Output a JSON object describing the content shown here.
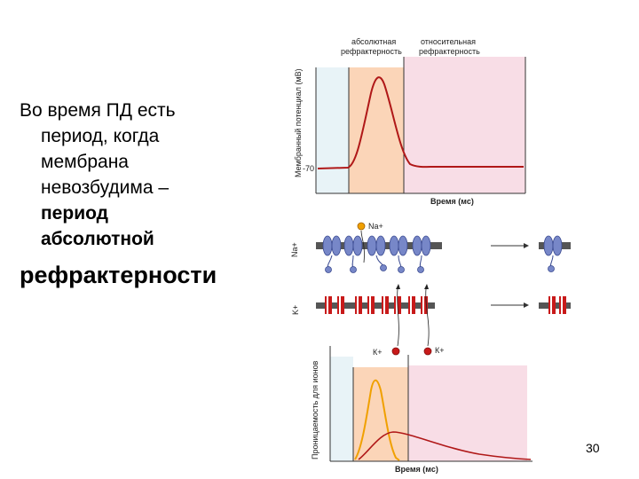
{
  "text": {
    "line1": "Во время ПД есть",
    "line2": "период, когда",
    "line3": "мембрана",
    "line4": "невозбудима –",
    "line5": "период",
    "line6": "абсолютной",
    "line7": "рефрактерности"
  },
  "top_chart": {
    "zone1_line1": "абсолютная",
    "zone1_line2": "рефрактерность",
    "zone2_line1": "относительная",
    "zone2_line2": "рефрактерность",
    "ylabel": "Мембранный потенциал (мВ)",
    "tick": "-70",
    "xlabel": "Время (мс)"
  },
  "channels": {
    "na_label": "Na+",
    "na_ion": "Na+",
    "k_label": "K+"
  },
  "bottom_chart": {
    "ion1": "К+",
    "ion2": "К+",
    "ylabel": "Проницаемость для ионов",
    "xlabel": "Время (мс)"
  },
  "colors": {
    "abs_zone": "#fbd5b8",
    "rel_zone": "#f8dde6",
    "pre_zone": "#e8f3f7",
    "ap_curve": "#b01818",
    "na_curve": "#f0a000",
    "na_channel": "#7787c8",
    "k_channel": "#c81a1a"
  },
  "page_number": "30"
}
